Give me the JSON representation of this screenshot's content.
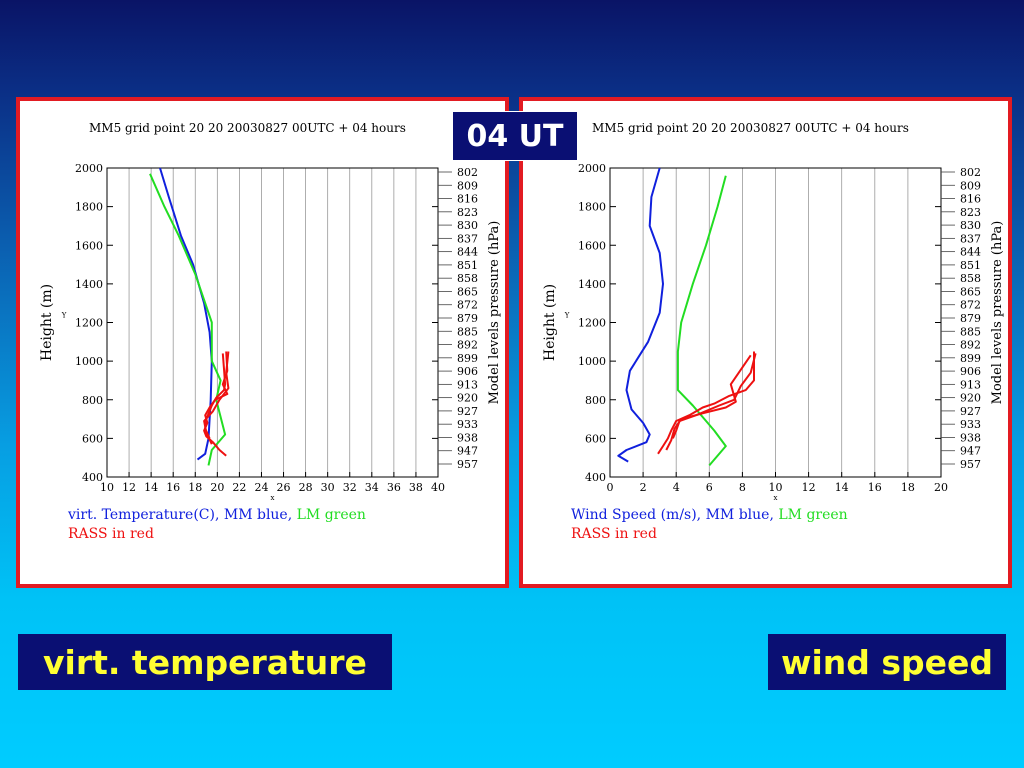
{
  "badge": "04 UT",
  "captions": {
    "left": "virt. temperature",
    "right": "wind speed"
  },
  "colors": {
    "mm": "#1020dd",
    "lm": "#22dd22",
    "rass": "#ee1111",
    "frame": "#e21b22",
    "caption_text": "#ffff33",
    "caption_bg": "#0a0f73"
  },
  "pressure_labels": [
    "802",
    "809",
    "816",
    "823",
    "830",
    "837",
    "844",
    "851",
    "858",
    "865",
    "872",
    "879",
    "885",
    "892",
    "899",
    "906",
    "913",
    "920",
    "927",
    "933",
    "938",
    "947",
    "957"
  ],
  "chart_data": [
    {
      "type": "line",
      "title": "MM5 grid point  20 20  20030827 00UTC + 04 hours",
      "ylabel": "Height (m)",
      "y2label": "Model levels pressure (hPa)",
      "ylim": [
        400,
        2000
      ],
      "yticks": [
        "400",
        "600",
        "800",
        "1000",
        "1200",
        "1400",
        "1600",
        "1800",
        "2000"
      ],
      "xlim": [
        10,
        40
      ],
      "xticks": [
        "10",
        "12",
        "14",
        "16",
        "18",
        "20",
        "22",
        "24",
        "26",
        "28",
        "30",
        "32",
        "34",
        "36",
        "38",
        "40"
      ],
      "small_x_label": "x",
      "small_y_label": "Y",
      "legend_line1": [
        {
          "text": "virt. Temperature(C), MM blue, ",
          "color": "#1020dd"
        },
        {
          "text": "LM green",
          "color": "#22dd22"
        }
      ],
      "legend_line2": {
        "text": "RASS in red",
        "color": "#ee1111"
      },
      "series": [
        {
          "color": "#1020dd",
          "points": [
            [
              14.8,
              2000
            ],
            [
              15.6,
              1850
            ],
            [
              16.7,
              1650
            ],
            [
              17.8,
              1500
            ],
            [
              18.8,
              1300
            ],
            [
              19.3,
              1150
            ],
            [
              19.5,
              1000
            ],
            [
              19.4,
              800
            ],
            [
              19.2,
              600
            ],
            [
              18.9,
              520
            ],
            [
              18.2,
              490
            ]
          ]
        },
        {
          "color": "#22dd22",
          "points": [
            [
              13.9,
              1970
            ],
            [
              15.2,
              1800
            ],
            [
              16.5,
              1650
            ],
            [
              18.0,
              1450
            ],
            [
              19.5,
              1200
            ],
            [
              19.5,
              1000
            ],
            [
              20.3,
              900
            ],
            [
              19.9,
              800
            ],
            [
              20.7,
              620
            ],
            [
              19.5,
              540
            ],
            [
              19.2,
              460
            ]
          ]
        },
        {
          "color": "#ee1111",
          "points": [
            [
              20.8,
              1050
            ],
            [
              20.9,
              950
            ],
            [
              20.5,
              880
            ],
            [
              20.9,
              830
            ],
            [
              19.8,
              800
            ],
            [
              19.3,
              760
            ],
            [
              18.9,
              720
            ],
            [
              19.1,
              680
            ],
            [
              18.8,
              640
            ],
            [
              19.0,
              610
            ],
            [
              19.6,
              580
            ],
            [
              20.2,
              540
            ],
            [
              20.8,
              510
            ]
          ]
        },
        {
          "color": "#ee1111",
          "points": [
            [
              20.5,
              1040
            ],
            [
              20.6,
              960
            ],
            [
              20.7,
              880
            ],
            [
              20.6,
              850
            ],
            [
              19.9,
              810
            ],
            [
              19.5,
              770
            ],
            [
              19.0,
              700
            ],
            [
              18.9,
              650
            ],
            [
              19.3,
              600
            ]
          ]
        },
        {
          "color": "#ee1111",
          "points": [
            [
              21.0,
              1050
            ],
            [
              20.8,
              940
            ],
            [
              21.0,
              860
            ],
            [
              20.2,
              800
            ],
            [
              19.6,
              740
            ],
            [
              18.8,
              690
            ],
            [
              19.0,
              630
            ],
            [
              19.5,
              570
            ]
          ]
        }
      ]
    },
    {
      "type": "line",
      "title": "MM5 grid point  20 20  20030827 00UTC + 04 hours",
      "ylabel": "Height (m)",
      "y2label": "Model levels pressure (hPa)",
      "ylim": [
        400,
        2000
      ],
      "yticks": [
        "400",
        "600",
        "800",
        "1000",
        "1200",
        "1400",
        "1600",
        "1800",
        "2000"
      ],
      "xlim": [
        0,
        20
      ],
      "xticks": [
        "0",
        "2",
        "4",
        "6",
        "8",
        "10",
        "12",
        "14",
        "16",
        "18",
        "20"
      ],
      "small_x_label": "x",
      "small_y_label": "Y",
      "legend_line1": [
        {
          "text": "Wind Speed (m/s), MM blue,    ",
          "color": "#1020dd"
        },
        {
          "text": "LM green",
          "color": "#22dd22"
        }
      ],
      "legend_line2": {
        "text": "RASS in red",
        "color": "#ee1111"
      },
      "series": [
        {
          "color": "#1020dd",
          "points": [
            [
              3.0,
              2000
            ],
            [
              2.5,
              1850
            ],
            [
              2.4,
              1700
            ],
            [
              3.0,
              1560
            ],
            [
              3.2,
              1400
            ],
            [
              3.0,
              1250
            ],
            [
              2.3,
              1100
            ],
            [
              1.2,
              950
            ],
            [
              1.0,
              850
            ],
            [
              1.3,
              750
            ],
            [
              2.0,
              680
            ],
            [
              2.4,
              620
            ],
            [
              2.2,
              580
            ],
            [
              1.0,
              540
            ],
            [
              0.5,
              510
            ],
            [
              1.1,
              480
            ]
          ]
        },
        {
          "color": "#22dd22",
          "points": [
            [
              7.0,
              1960
            ],
            [
              6.5,
              1800
            ],
            [
              5.8,
              1600
            ],
            [
              5.0,
              1400
            ],
            [
              4.3,
              1200
            ],
            [
              4.1,
              1050
            ],
            [
              4.1,
              850
            ],
            [
              5.0,
              770
            ],
            [
              6.3,
              640
            ],
            [
              7.0,
              560
            ],
            [
              6.0,
              460
            ]
          ]
        },
        {
          "color": "#ee1111",
          "points": [
            [
              8.7,
              1050
            ],
            [
              8.7,
              900
            ],
            [
              8.2,
              850
            ],
            [
              7.2,
              820
            ],
            [
              6.3,
              780
            ],
            [
              5.6,
              760
            ],
            [
              4.8,
              720
            ],
            [
              4.0,
              690
            ],
            [
              3.7,
              640
            ],
            [
              3.5,
              600
            ],
            [
              3.2,
              560
            ],
            [
              2.9,
              520
            ]
          ]
        },
        {
          "color": "#ee1111",
          "points": [
            [
              8.5,
              1030
            ],
            [
              7.3,
              880
            ],
            [
              7.6,
              790
            ],
            [
              7.0,
              760
            ],
            [
              5.6,
              730
            ],
            [
              4.3,
              700
            ],
            [
              3.9,
              650
            ],
            [
              3.7,
              590
            ],
            [
              3.4,
              540
            ]
          ]
        },
        {
          "color": "#ee1111",
          "points": [
            [
              8.8,
              1040
            ],
            [
              8.5,
              940
            ],
            [
              7.9,
              870
            ],
            [
              7.5,
              800
            ],
            [
              6.6,
              770
            ],
            [
              5.2,
              720
            ],
            [
              4.2,
              690
            ],
            [
              4.0,
              640
            ],
            [
              3.8,
              600
            ]
          ]
        }
      ]
    }
  ]
}
